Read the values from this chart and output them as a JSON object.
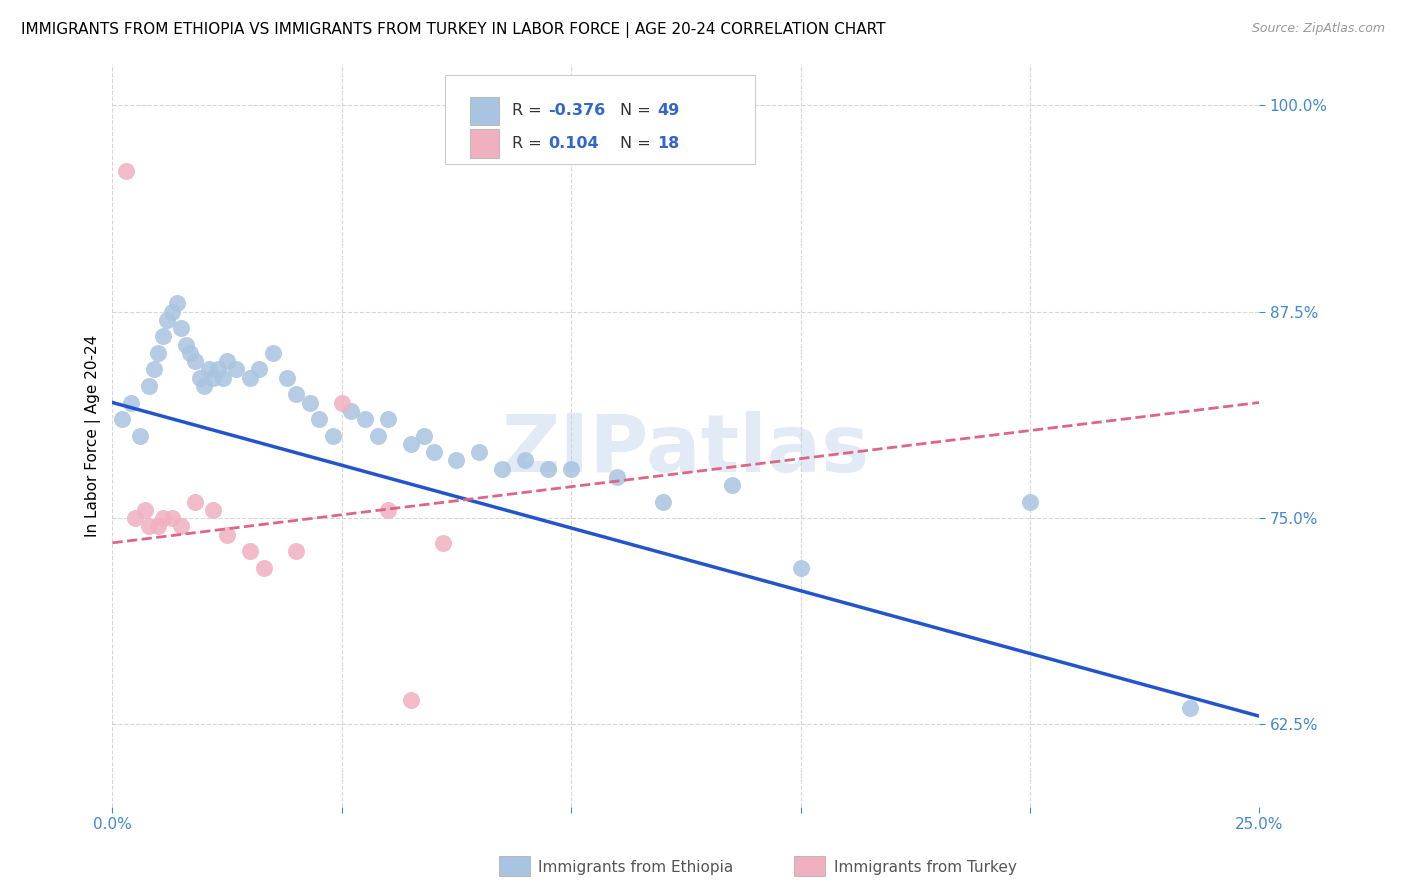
{
  "title": "IMMIGRANTS FROM ETHIOPIA VS IMMIGRANTS FROM TURKEY IN LABOR FORCE | AGE 20-24 CORRELATION CHART",
  "source": "Source: ZipAtlas.com",
  "ylabel": "In Labor Force | Age 20-24",
  "xlim": [
    0.0,
    0.25
  ],
  "ylim": [
    0.575,
    1.025
  ],
  "xticks": [
    0.0,
    0.05,
    0.1,
    0.15,
    0.2,
    0.25
  ],
  "xticklabels": [
    "0.0%",
    "",
    "",
    "",
    "",
    "25.0%"
  ],
  "yticks": [
    0.625,
    0.75,
    0.875,
    1.0
  ],
  "yticklabels": [
    "62.5%",
    "75.0%",
    "87.5%",
    "100.0%"
  ],
  "legend_r_ethiopia": "-0.376",
  "legend_n_ethiopia": "49",
  "legend_r_turkey": "0.104",
  "legend_n_turkey": "18",
  "ethiopia_color": "#a8c4e0",
  "turkey_color": "#f0b0c0",
  "ethiopia_line_color": "#2255cc",
  "turkey_line_color": "#dd6688",
  "watermark": "ZIPatlas",
  "ethiopia_x": [
    0.002,
    0.004,
    0.006,
    0.008,
    0.009,
    0.01,
    0.011,
    0.012,
    0.013,
    0.014,
    0.015,
    0.016,
    0.017,
    0.018,
    0.019,
    0.02,
    0.021,
    0.022,
    0.023,
    0.024,
    0.025,
    0.027,
    0.03,
    0.032,
    0.035,
    0.038,
    0.04,
    0.043,
    0.045,
    0.048,
    0.052,
    0.055,
    0.058,
    0.06,
    0.065,
    0.068,
    0.07,
    0.075,
    0.08,
    0.085,
    0.09,
    0.095,
    0.1,
    0.11,
    0.12,
    0.135,
    0.15,
    0.2,
    0.235
  ],
  "ethiopia_y": [
    0.81,
    0.82,
    0.8,
    0.83,
    0.84,
    0.85,
    0.86,
    0.87,
    0.875,
    0.88,
    0.865,
    0.855,
    0.85,
    0.845,
    0.835,
    0.83,
    0.84,
    0.835,
    0.84,
    0.835,
    0.845,
    0.84,
    0.835,
    0.84,
    0.85,
    0.835,
    0.825,
    0.82,
    0.81,
    0.8,
    0.815,
    0.81,
    0.8,
    0.81,
    0.795,
    0.8,
    0.79,
    0.785,
    0.79,
    0.78,
    0.785,
    0.78,
    0.78,
    0.775,
    0.76,
    0.77,
    0.72,
    0.76,
    0.635
  ],
  "turkey_x": [
    0.003,
    0.005,
    0.007,
    0.008,
    0.01,
    0.011,
    0.013,
    0.015,
    0.018,
    0.022,
    0.025,
    0.03,
    0.033,
    0.04,
    0.05,
    0.06,
    0.065,
    0.072
  ],
  "turkey_y": [
    0.96,
    0.75,
    0.755,
    0.745,
    0.745,
    0.75,
    0.75,
    0.745,
    0.76,
    0.755,
    0.74,
    0.73,
    0.72,
    0.73,
    0.82,
    0.755,
    0.64,
    0.735
  ],
  "eth_line_x0": 0.0,
  "eth_line_y0": 0.82,
  "eth_line_x1": 0.25,
  "eth_line_y1": 0.63,
  "turk_line_x0": 0.0,
  "turk_line_y0": 0.735,
  "turk_line_x1": 0.25,
  "turk_line_y1": 0.82,
  "title_fontsize": 11,
  "axis_label_fontsize": 11,
  "tick_fontsize": 11,
  "legend_fontsize": 12
}
